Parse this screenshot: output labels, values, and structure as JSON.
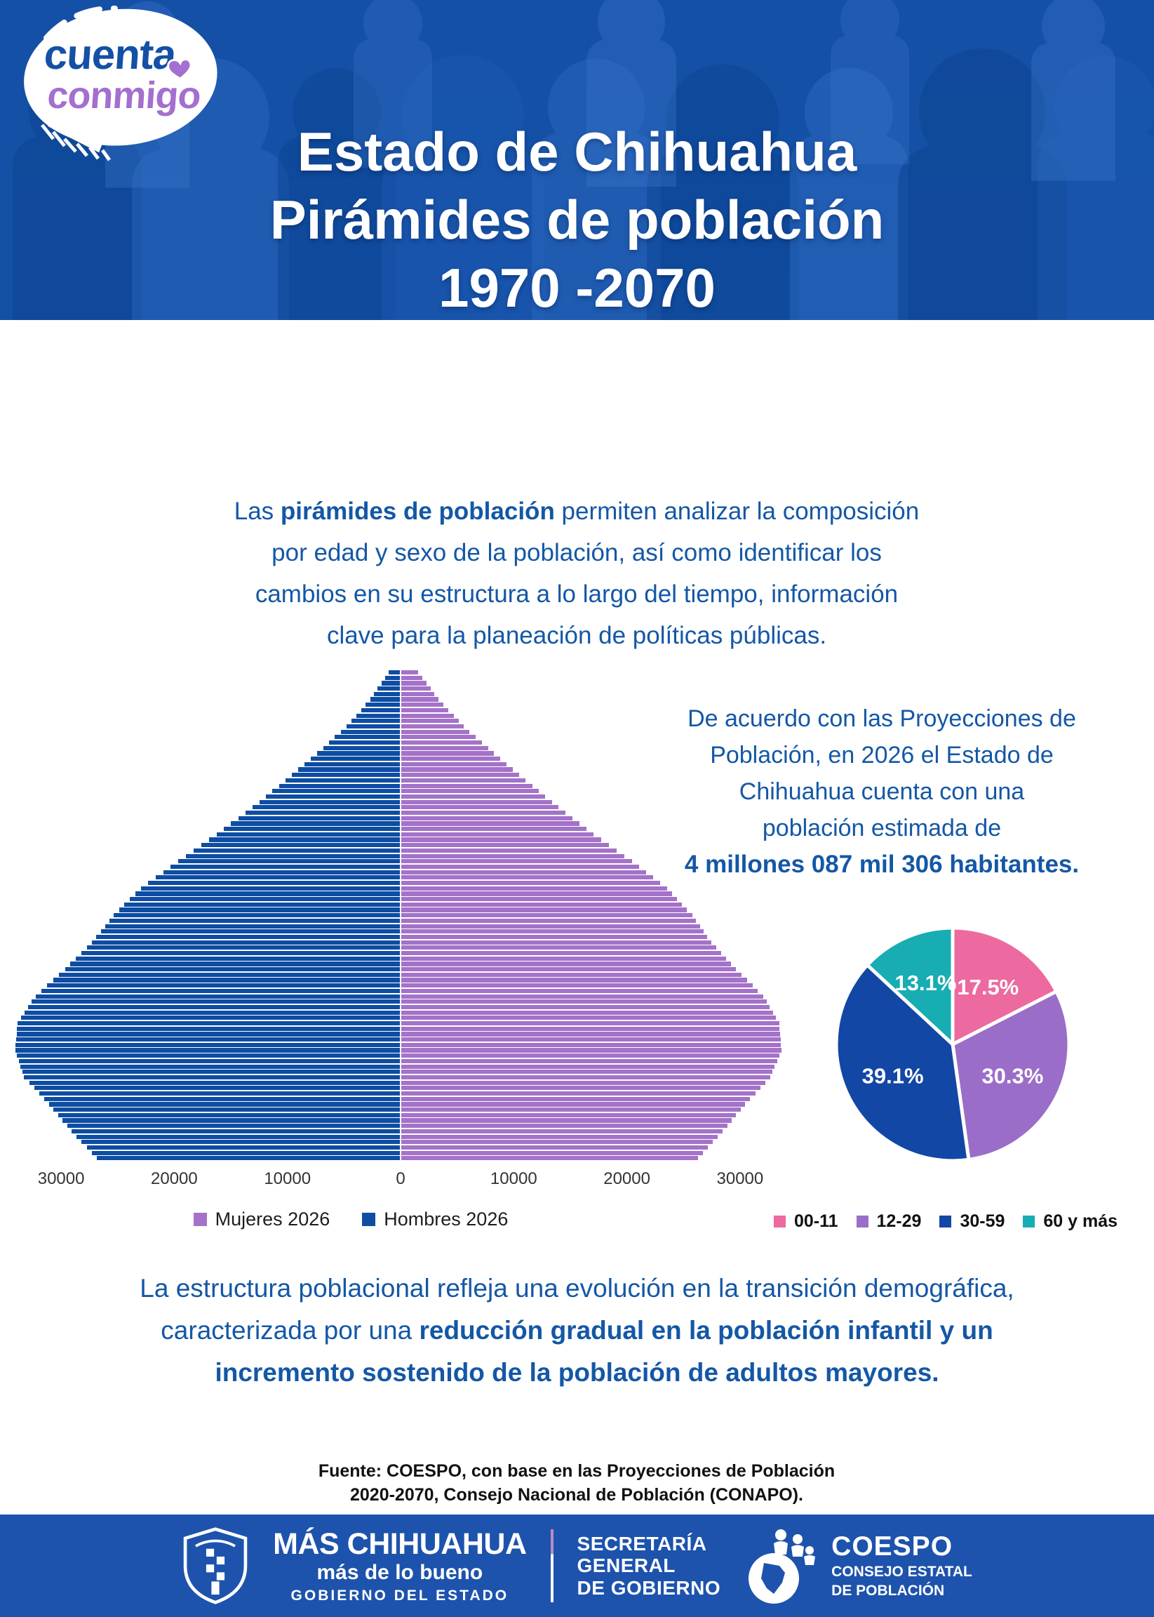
{
  "header": {
    "logo": {
      "word1": "cuenta",
      "word2": "conmigo"
    },
    "title_line1": "Estado de Chihuahua",
    "title_line2": "Pirámides de población",
    "title_line3": "1970 -2070"
  },
  "intro": {
    "lines": [
      {
        "pre": "Las ",
        "bold": "pirámides de población",
        "post": " permiten analizar la composición"
      },
      {
        "text": "por edad y sexo de la población, así como identificar los"
      },
      {
        "text": "cambios en su estructura a lo largo del tiempo, información"
      },
      {
        "text": "clave para la planeación de políticas públicas."
      }
    ]
  },
  "projection_note": {
    "lines": [
      "De acuerdo con las Proyecciones de",
      "Población, en 2026 el Estado de",
      "Chihuahua cuenta con una",
      "población estimada de"
    ],
    "bold_line": "4 millones 087 mil 306 habitantes."
  },
  "chart_data": [
    {
      "type": "bar",
      "variant": "population_pyramid",
      "x_axis_tick_labels": [
        "30000",
        "20000",
        "10000",
        "0",
        "10000",
        "20000",
        "30000"
      ],
      "xlim_per_side": 34000,
      "age_min": 0,
      "age_max": 90,
      "anchor_ages": [
        0,
        5,
        10,
        15,
        20,
        25,
        30,
        35,
        40,
        45,
        50,
        55,
        60,
        65,
        70,
        75,
        80,
        85,
        90
      ],
      "series": [
        {
          "name": "Mujeres 2026",
          "color": "#a472c9",
          "side": "right",
          "values": [
            26200,
            28400,
            30400,
            32600,
            33600,
            33400,
            32000,
            29600,
            27400,
            25700,
            23500,
            20400,
            17000,
            13900,
            11000,
            8200,
            5500,
            3300,
            1500
          ]
        },
        {
          "name": "Hombres 2026",
          "color": "#0d4da3",
          "side": "left",
          "values": [
            26800,
            29000,
            31000,
            33200,
            34000,
            33800,
            32200,
            29600,
            27200,
            25300,
            22900,
            19600,
            16200,
            13000,
            10100,
            7300,
            4700,
            2600,
            1000
          ]
        }
      ],
      "note": "Single-year bars; values estimated from chart, anchors every 5 years linearly interpolated.",
      "legend_position": "bottom",
      "grid": false
    },
    {
      "type": "pie",
      "labels": [
        "00-11",
        "12-29",
        "30-59",
        "60 y más"
      ],
      "values": [
        17.5,
        30.3,
        39.1,
        13.1
      ],
      "value_labels": [
        "17.5%",
        "30.3%",
        "39.1%",
        "13.1%"
      ],
      "colors": [
        "#ec6a9f",
        "#9a6ec8",
        "#1247a5",
        "#17adb3"
      ],
      "start_angle_deg": -90,
      "direction": "clockwise",
      "legend_position": "bottom"
    }
  ],
  "structure_note": {
    "normal": "La estructura poblacional refleja una evolución en la transición demográfica, caracterizada por una ",
    "bold": "reducción gradual en la población infantil y un incremento sostenido de la población de adultos mayores."
  },
  "source": {
    "line1": "Fuente: COESPO, con base en las Proyecciones de Población",
    "line2": "2020-2070, Consejo Nacional de Población (CONAPO)."
  },
  "footer": {
    "government": {
      "title": "MÁS CHIHUAHUA",
      "subtitle": "más de lo bueno",
      "caption": "GOBIERNO DEL ESTADO"
    },
    "secretaria": {
      "line1": "SECRETARÍA",
      "line2": "GENERAL",
      "line3": "DE GOBIERNO"
    },
    "coespo": {
      "title": "COESPO",
      "line1": "CONSEJO ESTATAL",
      "line2": "DE POBLACIÓN"
    }
  },
  "colors": {
    "header_bg": "#1450a6",
    "footer_bg": "#1d53ac",
    "body_text_blue": "#1457a6",
    "pyramid_male": "#0d4da3",
    "pyramid_female": "#a472c9"
  }
}
